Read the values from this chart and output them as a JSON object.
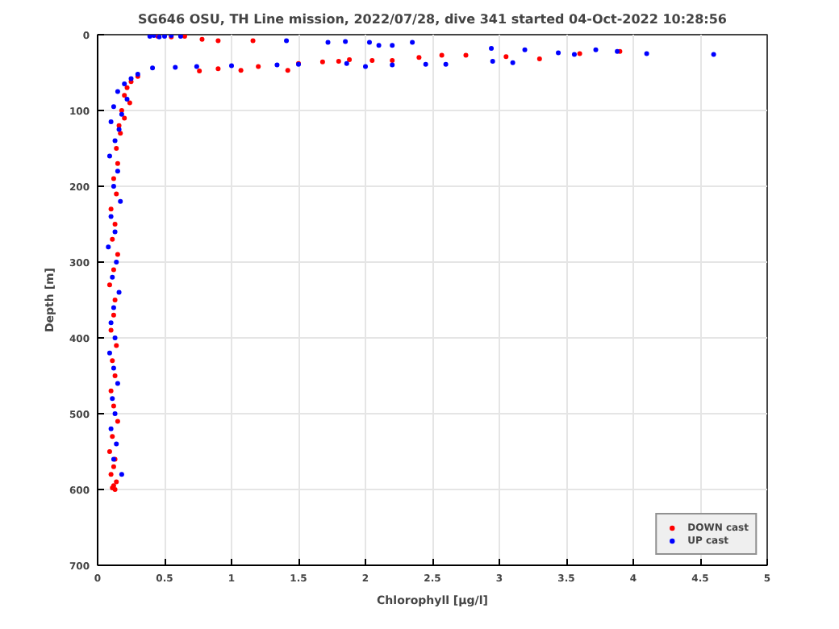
{
  "chart_data": {
    "type": "scatter",
    "title": "SG646 OSU, TH Line mission, 2022/07/28, dive 341 started 04-Oct-2022 10:28:56",
    "xlabel": "Chlorophyll [µg/l]",
    "ylabel": "Depth [m]",
    "xlim": [
      0,
      5
    ],
    "ylim": [
      700,
      0
    ],
    "xticks": [
      0,
      0.5,
      1,
      1.5,
      2,
      2.5,
      3,
      3.5,
      4,
      4.5,
      5
    ],
    "yticks": [
      0,
      100,
      200,
      300,
      400,
      500,
      600,
      700
    ],
    "grid": true,
    "legend": "bottom right",
    "marker": "circle",
    "series": [
      {
        "name": "DOWN cast",
        "color": "#ff0000",
        "x": [
          0.45,
          0.55,
          0.65,
          0.78,
          0.9,
          1.16,
          1.88,
          2.2,
          2.57,
          2.75,
          3.05,
          3.3,
          3.6,
          3.9,
          0.76,
          0.9,
          1.07,
          1.2,
          1.42,
          1.5,
          1.68,
          1.8,
          2.05,
          2.4,
          0.3,
          0.25,
          0.22,
          0.2,
          0.24,
          0.18,
          0.2,
          0.16,
          0.17,
          0.14,
          0.15,
          0.12,
          0.14,
          0.1,
          0.13,
          0.11,
          0.15,
          0.12,
          0.09,
          0.13,
          0.12,
          0.1,
          0.14,
          0.11,
          0.13,
          0.1,
          0.12,
          0.15,
          0.11,
          0.09,
          0.13,
          0.12,
          0.1,
          0.14,
          0.12,
          0.11,
          0.13
        ],
        "values": [
          2,
          3,
          2,
          6,
          8,
          8,
          33,
          34,
          27,
          27,
          29,
          32,
          25,
          22,
          48,
          45,
          47,
          42,
          47,
          38,
          36,
          35,
          34,
          30,
          55,
          62,
          70,
          80,
          90,
          100,
          110,
          120,
          130,
          150,
          170,
          190,
          210,
          230,
          250,
          270,
          290,
          310,
          330,
          350,
          370,
          390,
          410,
          430,
          450,
          470,
          490,
          510,
          530,
          550,
          560,
          570,
          580,
          590,
          595,
          598,
          600
        ]
      },
      {
        "name": "UP cast",
        "color": "#0000ff",
        "x": [
          0.39,
          0.42,
          0.46,
          0.5,
          0.55,
          0.62,
          1.41,
          1.72,
          1.85,
          2.03,
          2.1,
          2.2,
          2.35,
          2.94,
          3.19,
          3.44,
          3.56,
          3.72,
          3.88,
          4.1,
          4.6,
          0.41,
          0.58,
          0.74,
          1.0,
          1.34,
          1.5,
          1.86,
          2.0,
          2.2,
          2.45,
          2.6,
          2.95,
          3.1,
          0.3,
          0.25,
          0.2,
          0.15,
          0.22,
          0.12,
          0.18,
          0.1,
          0.16,
          0.13,
          0.09,
          0.15,
          0.12,
          0.17,
          0.1,
          0.13,
          0.08,
          0.14,
          0.11,
          0.16,
          0.12,
          0.1,
          0.13,
          0.09,
          0.12,
          0.15,
          0.11,
          0.13,
          0.1,
          0.14,
          0.12,
          0.18
        ],
        "values": [
          2,
          1,
          3,
          2,
          1,
          2,
          8,
          10,
          9,
          10,
          14,
          14,
          10,
          18,
          20,
          24,
          26,
          20,
          22,
          25,
          26,
          44,
          43,
          42,
          41,
          40,
          39,
          38,
          42,
          40,
          39,
          39,
          35,
          37,
          52,
          58,
          65,
          75,
          85,
          95,
          105,
          115,
          125,
          140,
          160,
          180,
          200,
          220,
          240,
          260,
          280,
          300,
          320,
          340,
          360,
          380,
          400,
          420,
          440,
          460,
          480,
          500,
          520,
          540,
          560,
          580
        ]
      }
    ]
  }
}
